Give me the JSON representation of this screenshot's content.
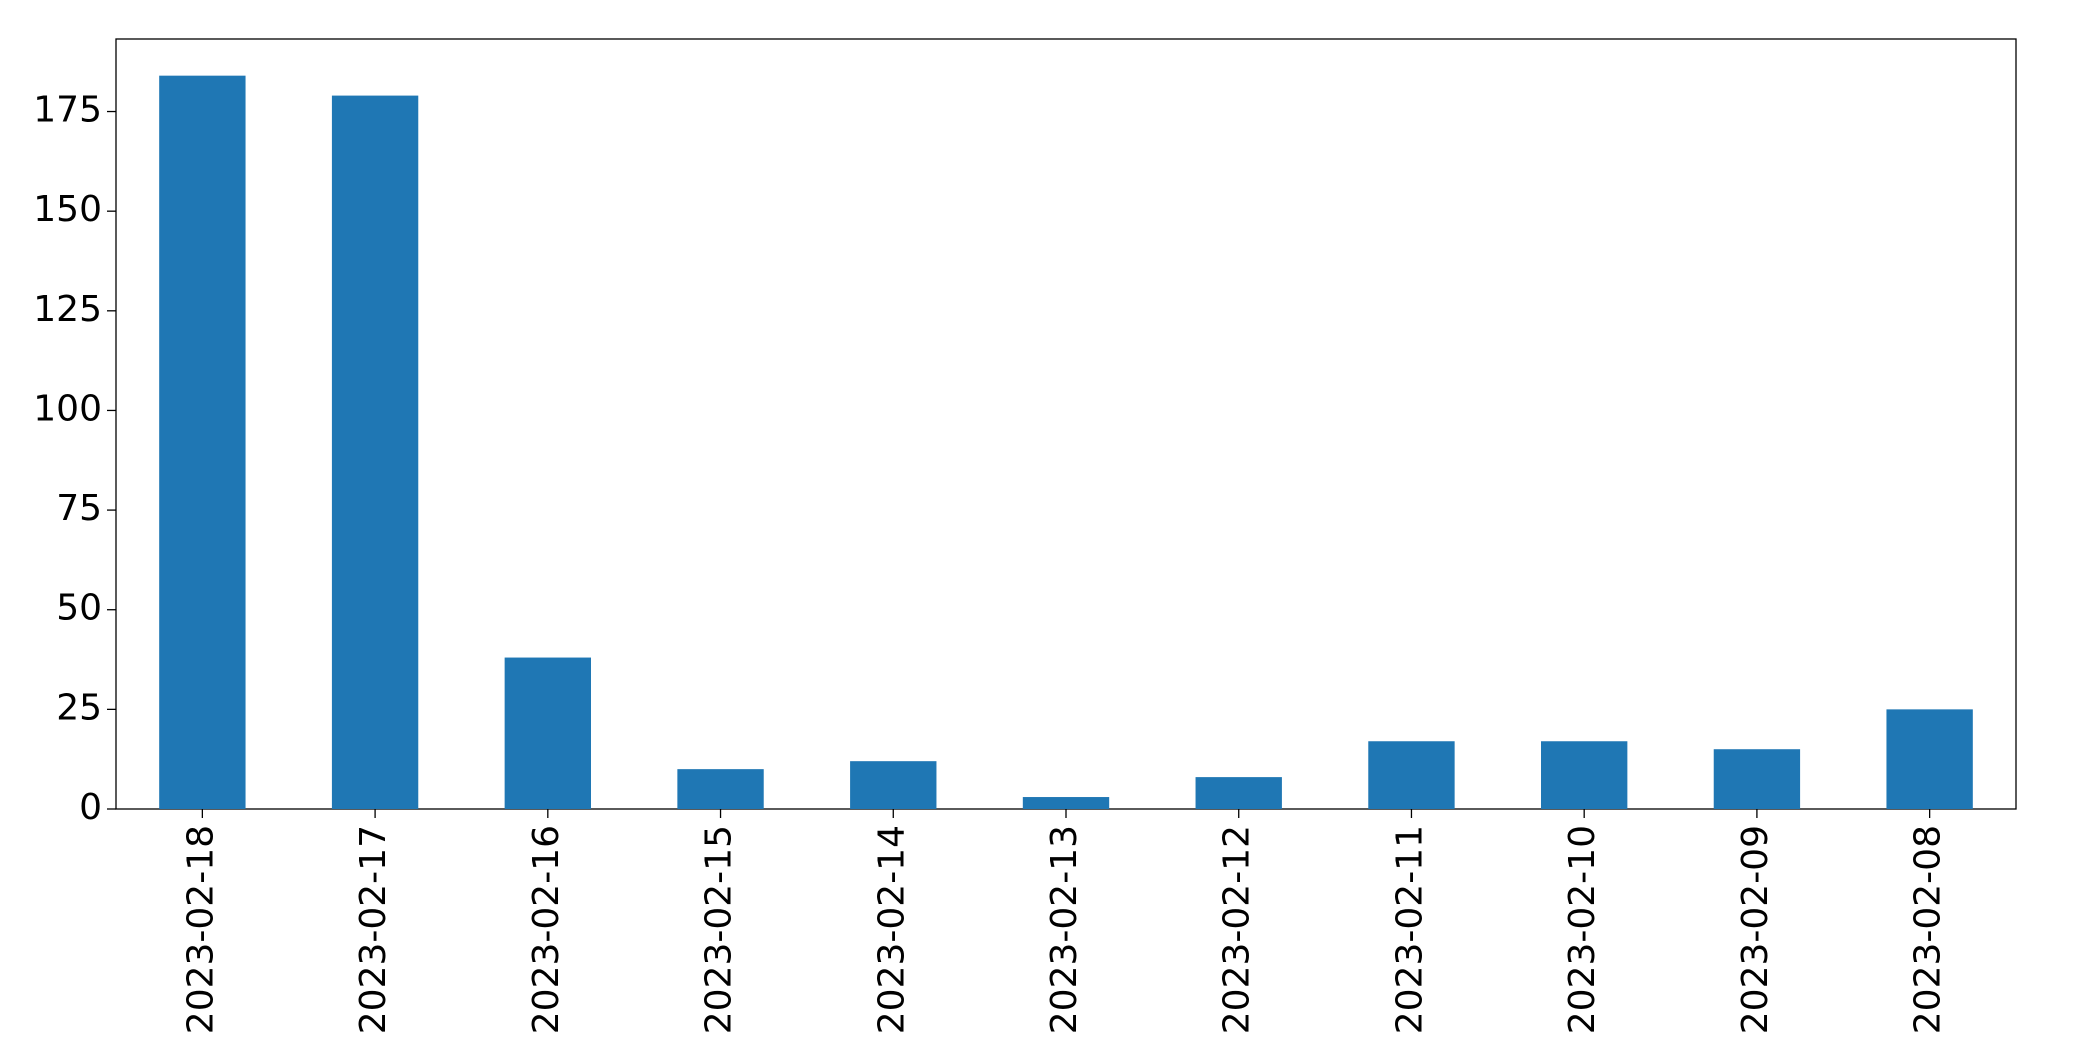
{
  "chart_data": {
    "type": "bar",
    "categories": [
      "2023-02-18",
      "2023-02-17",
      "2023-02-16",
      "2023-02-15",
      "2023-02-14",
      "2023-02-13",
      "2023-02-12",
      "2023-02-11",
      "2023-02-10",
      "2023-02-09",
      "2023-02-08"
    ],
    "values": [
      184,
      179,
      38,
      10,
      12,
      3,
      8,
      17,
      17,
      15,
      25
    ],
    "color": "#1f77b4",
    "ylim": [
      0,
      193.2
    ],
    "yticks": [
      0,
      25,
      50,
      75,
      100,
      125,
      150,
      175
    ],
    "grid": false
  }
}
